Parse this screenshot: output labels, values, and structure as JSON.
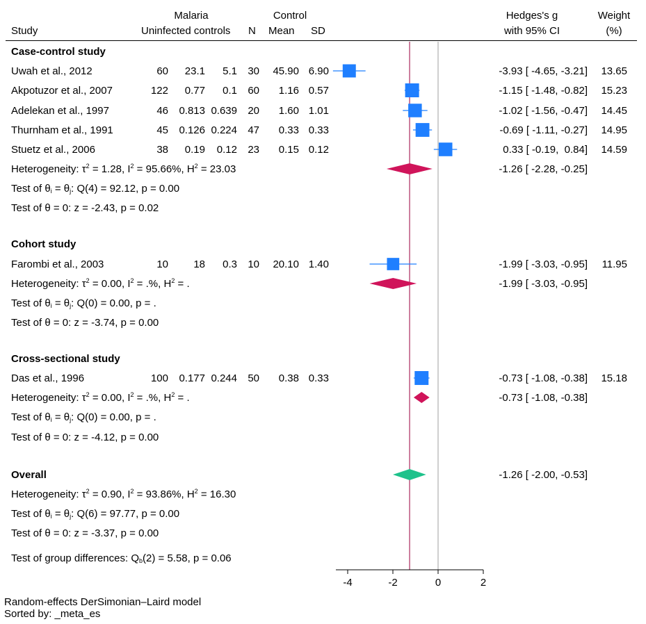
{
  "header": {
    "study": "Study",
    "malaria": "Malaria",
    "uninfected_controls": "Uninfected controls",
    "n": "N",
    "control": "Control",
    "mean": "Mean",
    "sd": "SD",
    "effect_line1": "Hedges's g",
    "effect_line2": "with 95% CI",
    "weight_line1": "Weight",
    "weight_line2": "(%)"
  },
  "groups": [
    {
      "title": "Case-control study",
      "studies": [
        {
          "name": "Uwah et al., 2012",
          "mal_n": "60",
          "mal_mean": "23.1",
          "mal_sd": "5.1",
          "ctl_n": "30",
          "ctl_mean": "45.90",
          "ctl_sd": "6.90",
          "ci_text": "-3.93 [ -4.65, -3.21]",
          "weight": "13.65"
        },
        {
          "name": "Akpotuzor et al., 2007",
          "mal_n": "122",
          "mal_mean": "0.77",
          "mal_sd": "0.1",
          "ctl_n": "60",
          "ctl_mean": "1.16",
          "ctl_sd": "0.57",
          "ci_text": "-1.15 [ -1.48, -0.82]",
          "weight": "15.23"
        },
        {
          "name": "Adelekan et al., 1997",
          "mal_n": "46",
          "mal_mean": "0.813",
          "mal_sd": "0.639",
          "ctl_n": "20",
          "ctl_mean": "1.60",
          "ctl_sd": "1.01",
          "ci_text": "-1.02 [ -1.56, -0.47]",
          "weight": "14.45"
        },
        {
          "name": "Thurnham et al., 1991",
          "mal_n": "45",
          "mal_mean": "0.126",
          "mal_sd": "0.224",
          "ctl_n": "47",
          "ctl_mean": "0.33",
          "ctl_sd": "0.33",
          "ci_text": "-0.69 [ -1.11, -0.27]",
          "weight": "14.95"
        },
        {
          "name": "Stuetz et al., 2006",
          "mal_n": "38",
          "mal_mean": "0.19",
          "mal_sd": "0.12",
          "ctl_n": "23",
          "ctl_mean": "0.15",
          "ctl_sd": "0.12",
          "ci_text": "0.33 [ -0.19,  0.84]",
          "weight": "14.59"
        }
      ],
      "het": {
        "tau2": "1.28",
        "i2": "95.66%",
        "h2": "23.03"
      },
      "pooled_text": "-1.26 [ -2.28, -0.25]",
      "homog": {
        "df": "4",
        "q": "92.12",
        "p": "0.00"
      },
      "ztest": {
        "z": "-2.43",
        "p": "0.02"
      }
    },
    {
      "title": "Cohort study",
      "studies": [
        {
          "name": "Farombi et al., 2003",
          "mal_n": "10",
          "mal_mean": "18",
          "mal_sd": "0.3",
          "ctl_n": "10",
          "ctl_mean": "20.10",
          "ctl_sd": "1.40",
          "ci_text": "-1.99 [ -3.03, -0.95]",
          "weight": "11.95"
        }
      ],
      "het": {
        "tau2": "0.00",
        "i2": ".%",
        "h2": "."
      },
      "pooled_text": "-1.99 [ -3.03, -0.95]",
      "homog": {
        "df": "0",
        "q": "0.00",
        "p": "."
      },
      "ztest": {
        "z": "-3.74",
        "p": "0.00"
      }
    },
    {
      "title": "Cross-sectional study",
      "studies": [
        {
          "name": "Das et al., 1996",
          "mal_n": "100",
          "mal_mean": "0.177",
          "mal_sd": "0.244",
          "ctl_n": "50",
          "ctl_mean": "0.38",
          "ctl_sd": "0.33",
          "ci_text": "-0.73 [ -1.08, -0.38]",
          "weight": "15.18"
        }
      ],
      "het": {
        "tau2": "0.00",
        "i2": ".%",
        "h2": "."
      },
      "pooled_text": "-0.73 [ -1.08, -0.38]",
      "homog": {
        "df": "0",
        "q": "0.00",
        "p": "."
      },
      "ztest": {
        "z": "-4.12",
        "p": "0.00"
      }
    }
  ],
  "overall": {
    "title": "Overall",
    "het": {
      "tau2": "0.90",
      "i2": "93.86%",
      "h2": "16.30"
    },
    "pooled_text": "-1.26 [ -2.00, -0.53]",
    "homog": {
      "df": "6",
      "q": "97.77",
      "p": "0.00"
    },
    "ztest": {
      "z": "-3.37",
      "p": "0.00"
    }
  },
  "group_diff": {
    "df": "2",
    "q": "5.58",
    "p": "0.06"
  },
  "footer": {
    "line1": "Random-effects DerSimonian–Laird model",
    "line2": "Sorted by: _meta_es"
  },
  "colors": {
    "study_marker": "#1f7fff",
    "subgroup_diamond": "#d0145a",
    "overall_diamond": "#1ec28b",
    "overall_line": "#b03a6a",
    "null_line": "#b5b5b5"
  },
  "chart_data": {
    "type": "forest",
    "xlabel": "",
    "ylabel": "",
    "xlim": [
      -4.7,
      2.0
    ],
    "xticks": [
      -4,
      -2,
      0,
      2
    ],
    "tick_labels": [
      "-4",
      "-2",
      "0",
      "2"
    ],
    "null_value": 0,
    "overall_effect": -1.26,
    "studies": [
      {
        "name": "Uwah et al., 2012",
        "group": "Case-control study",
        "es": -3.93,
        "lo": -4.65,
        "hi": -3.21,
        "weight": 13.65
      },
      {
        "name": "Akpotuzor et al., 2007",
        "group": "Case-control study",
        "es": -1.15,
        "lo": -1.48,
        "hi": -0.82,
        "weight": 15.23
      },
      {
        "name": "Adelekan et al., 1997",
        "group": "Case-control study",
        "es": -1.02,
        "lo": -1.56,
        "hi": -0.47,
        "weight": 14.45
      },
      {
        "name": "Thurnham et al., 1991",
        "group": "Case-control study",
        "es": -0.69,
        "lo": -1.11,
        "hi": -0.27,
        "weight": 14.95
      },
      {
        "name": "Stuetz et al., 2006",
        "group": "Case-control study",
        "es": 0.33,
        "lo": -0.19,
        "hi": 0.84,
        "weight": 14.59
      },
      {
        "name": "Farombi et al., 2003",
        "group": "Cohort study",
        "es": -1.99,
        "lo": -3.03,
        "hi": -0.95,
        "weight": 11.95
      },
      {
        "name": "Das et al., 1996",
        "group": "Cross-sectional study",
        "es": -0.73,
        "lo": -1.08,
        "hi": -0.38,
        "weight": 15.18
      }
    ],
    "subgroups": [
      {
        "name": "Case-control study",
        "es": -1.26,
        "lo": -2.28,
        "hi": -0.25
      },
      {
        "name": "Cohort study",
        "es": -1.99,
        "lo": -3.03,
        "hi": -0.95
      },
      {
        "name": "Cross-sectional study",
        "es": -0.73,
        "lo": -1.08,
        "hi": -0.38
      }
    ],
    "overall": {
      "name": "Overall",
      "es": -1.26,
      "lo": -2.0,
      "hi": -0.53
    }
  }
}
